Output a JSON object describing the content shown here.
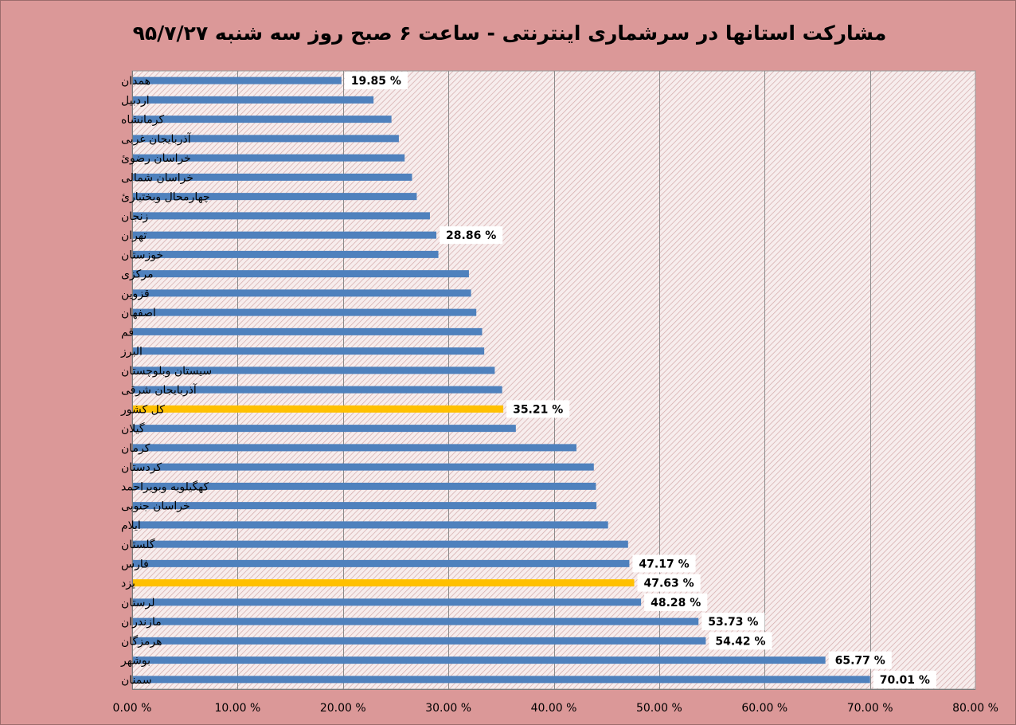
{
  "chart_data": {
    "type": "bar",
    "orientation": "horizontal",
    "title": "مشارکت استانها در سرشماری اینترنتی - ساعت ۶ صبح روز سه شنبه ۹۵/۷/۲۷",
    "xlabel": "",
    "ylabel": "",
    "xlim": [
      0,
      80
    ],
    "x_ticks": [
      0,
      10,
      20,
      30,
      40,
      50,
      60,
      70,
      80
    ],
    "x_tick_labels": [
      "0.00 %",
      "10.00 %",
      "20.00 %",
      "30.00 %",
      "40.00 %",
      "50.00 %",
      "60.00 %",
      "70.00 %",
      "80.00 %"
    ],
    "grid": "vertical",
    "legend": "none",
    "default_color": "#4f81bd",
    "highlight_color": "#ffc000",
    "categories": [
      "همدان",
      "اردبیل",
      "کرمانشاه",
      "آذربایجان غربی",
      "خراسان رضوئ",
      "خراسان شمالی",
      "چهارمحال وبختیارئ",
      "زنجان",
      "تهران",
      "خوزستان",
      "مرکزی",
      "قزوین",
      "اصفهان",
      "قم",
      "البرز",
      "سیستان وبلوچستان",
      "آذربایجان شرقی",
      "کل کشور",
      "گیلان",
      "کرمان",
      "کردستان",
      "کهگیلویه وبویراحمد",
      "خراسان جنوبی",
      "ایلام",
      "گلستان",
      "فارس",
      "یزد",
      "لرستان",
      "مازندران",
      "هرمزگان",
      "بوشهر",
      "سمنان"
    ],
    "values": [
      19.85,
      22.9,
      24.6,
      25.3,
      25.85,
      26.55,
      27.0,
      28.25,
      28.86,
      29.05,
      31.95,
      32.15,
      32.65,
      33.2,
      33.4,
      34.4,
      35.1,
      35.21,
      36.4,
      42.15,
      43.8,
      44.0,
      44.05,
      45.15,
      47.05,
      47.17,
      47.63,
      48.28,
      53.73,
      54.42,
      65.77,
      70.01
    ],
    "highlighted": [
      "کل کشور",
      "یزد"
    ],
    "data_labels": [
      {
        "category": "همدان",
        "text": "19.85 %"
      },
      {
        "category": "تهران",
        "text": "28.86 %"
      },
      {
        "category": "کل کشور",
        "text": "35.21 %"
      },
      {
        "category": "فارس",
        "text": "47.17 %"
      },
      {
        "category": "یزد",
        "text": "47.63 %"
      },
      {
        "category": "لرستان",
        "text": "48.28 %"
      },
      {
        "category": "مازندران",
        "text": "53.73 %"
      },
      {
        "category": "هرمزگان",
        "text": "54.42 %"
      },
      {
        "category": "بوشهر",
        "text": "65.77 %"
      },
      {
        "category": "سمنان",
        "text": "70.01 %"
      }
    ]
  }
}
